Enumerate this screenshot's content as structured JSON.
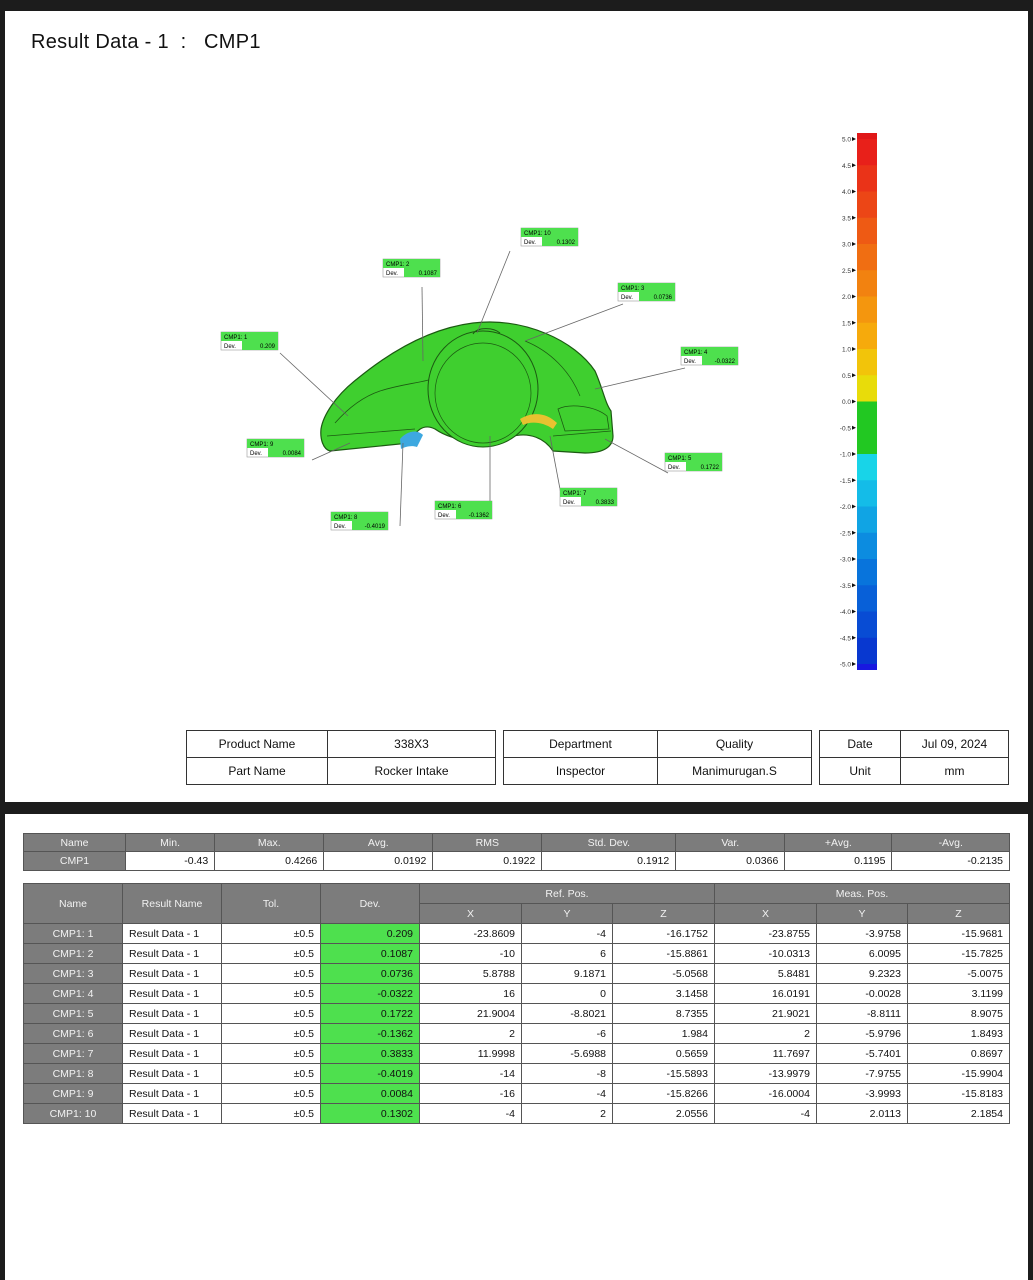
{
  "title": {
    "label": "Result Data - 1",
    "sep": ":",
    "name": "CMP1"
  },
  "colors": {
    "in_tol": "#4ee04e",
    "header_gray": "#7c7c7c"
  },
  "color_scale": {
    "labels": [
      "5.0",
      "4.5",
      "4.0",
      "3.5",
      "3.0",
      "2.5",
      "2.0",
      "1.5",
      "1.0",
      "0.5",
      "0.0",
      "-0.5",
      "-1.0",
      "-1.5",
      "-2.0",
      "-2.5",
      "-3.0",
      "-3.5",
      "-4.0",
      "-4.5",
      "-5.0"
    ]
  },
  "callouts": [
    {
      "label": "CMP1: 1",
      "dev_label": "Dev.",
      "dev": "0.209"
    },
    {
      "label": "CMP1: 2",
      "dev_label": "Dev.",
      "dev": "0.1087"
    },
    {
      "label": "CMP1: 10",
      "dev_label": "Dev.",
      "dev": "0.1302"
    },
    {
      "label": "CMP1: 3",
      "dev_label": "Dev.",
      "dev": "0.0736"
    },
    {
      "label": "CMP1: 4",
      "dev_label": "Dev.",
      "dev": "-0.0322"
    },
    {
      "label": "CMP1: 9",
      "dev_label": "Dev.",
      "dev": "0.0084"
    },
    {
      "label": "CMP1: 5",
      "dev_label": "Dev.",
      "dev": "0.1722"
    },
    {
      "label": "CMP1: 7",
      "dev_label": "Dev.",
      "dev": "0.3833"
    },
    {
      "label": "CMP1: 6",
      "dev_label": "Dev.",
      "dev": "-0.1362"
    },
    {
      "label": "CMP1: 8",
      "dev_label": "Dev.",
      "dev": "-0.4019"
    }
  ],
  "info": {
    "product_label": "Product Name",
    "product": "338X3",
    "part_label": "Part Name",
    "part": "Rocker Intake",
    "dept_label": "Department",
    "dept": "Quality",
    "inspector_label": "Inspector",
    "inspector": "Manimurugan.S",
    "date_label": "Date",
    "date": "Jul 09, 2024",
    "unit_label": "Unit",
    "unit": "mm"
  },
  "stats": {
    "headers": [
      "Name",
      "Min.",
      "Max.",
      "Avg.",
      "RMS",
      "Std. Dev.",
      "Var.",
      "+Avg.",
      "-Avg."
    ],
    "row": [
      "CMP1",
      "-0.43",
      "0.4266",
      "0.0192",
      "0.1922",
      "0.1912",
      "0.0366",
      "0.1195",
      "-0.2135"
    ]
  },
  "results": {
    "headers": {
      "name": "Name",
      "result": "Result Name",
      "tol": "Tol.",
      "dev": "Dev.",
      "ref": "Ref. Pos.",
      "meas": "Meas. Pos.",
      "x": "X",
      "y": "Y",
      "z": "Z"
    },
    "rows": [
      [
        "CMP1: 1",
        "Result Data - 1",
        "±0.5",
        "0.209",
        "-23.8609",
        "-4",
        "-16.1752",
        "-23.8755",
        "-3.9758",
        "-15.9681"
      ],
      [
        "CMP1: 2",
        "Result Data - 1",
        "±0.5",
        "0.1087",
        "-10",
        "6",
        "-15.8861",
        "-10.0313",
        "6.0095",
        "-15.7825"
      ],
      [
        "CMP1: 3",
        "Result Data - 1",
        "±0.5",
        "0.0736",
        "5.8788",
        "9.1871",
        "-5.0568",
        "5.8481",
        "9.2323",
        "-5.0075"
      ],
      [
        "CMP1: 4",
        "Result Data - 1",
        "±0.5",
        "-0.0322",
        "16",
        "0",
        "3.1458",
        "16.0191",
        "-0.0028",
        "3.1199"
      ],
      [
        "CMP1: 5",
        "Result Data - 1",
        "±0.5",
        "0.1722",
        "21.9004",
        "-8.8021",
        "8.7355",
        "21.9021",
        "-8.8111",
        "8.9075"
      ],
      [
        "CMP1: 6",
        "Result Data - 1",
        "±0.5",
        "-0.1362",
        "2",
        "-6",
        "1.984",
        "2",
        "-5.9796",
        "1.8493"
      ],
      [
        "CMP1: 7",
        "Result Data - 1",
        "±0.5",
        "0.3833",
        "11.9998",
        "-5.6988",
        "0.5659",
        "11.7697",
        "-5.7401",
        "0.8697"
      ],
      [
        "CMP1: 8",
        "Result Data - 1",
        "±0.5",
        "-0.4019",
        "-14",
        "-8",
        "-15.5893",
        "-13.9979",
        "-7.9755",
        "-15.9904"
      ],
      [
        "CMP1: 9",
        "Result Data - 1",
        "±0.5",
        "0.0084",
        "-16",
        "-4",
        "-15.8266",
        "-16.0004",
        "-3.9993",
        "-15.8183"
      ],
      [
        "CMP1: 10",
        "Result Data - 1",
        "±0.5",
        "0.1302",
        "-4",
        "2",
        "2.0556",
        "-4",
        "2.0113",
        "2.1854"
      ]
    ]
  }
}
